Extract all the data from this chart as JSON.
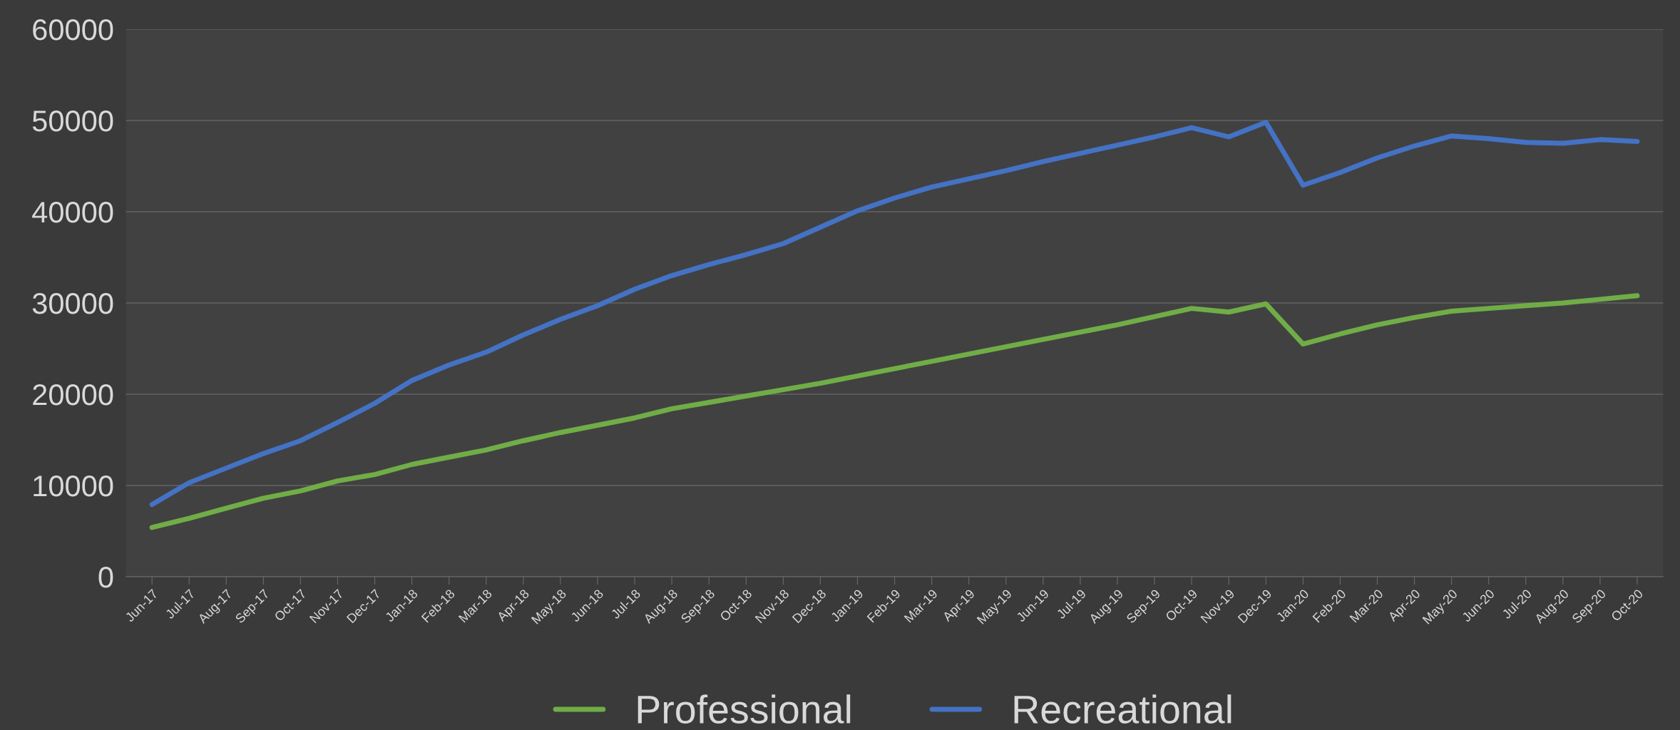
{
  "chart_data": {
    "type": "line",
    "categories": [
      "Jun-17",
      "Jul-17",
      "Aug-17",
      "Sep-17",
      "Oct-17",
      "Nov-17",
      "Dec-17",
      "Jan-18",
      "Feb-18",
      "Mar-18",
      "Apr-18",
      "May-18",
      "Jun-18",
      "Jul-18",
      "Aug-18",
      "Sep-18",
      "Oct-18",
      "Nov-18",
      "Dec-18",
      "Jan-19",
      "Feb-19",
      "Mar-19",
      "Apr-19",
      "May-19",
      "Jun-19",
      "Jul-19",
      "Aug-19",
      "Sep-19",
      "Oct-19",
      "Nov-19",
      "Dec-19",
      "Jan-20",
      "Feb-20",
      "Mar-20",
      "Apr-20",
      "May-20",
      "Jun-20",
      "Jul-20",
      "Aug-20",
      "Sep-20",
      "Oct-20"
    ],
    "series": [
      {
        "name": "Professional",
        "color": "#70ad47",
        "values": [
          5400,
          6400,
          7500,
          8600,
          9400,
          10500,
          11200,
          12300,
          13100,
          13900,
          14900,
          15800,
          16600,
          17400,
          18400,
          19100,
          19800,
          20500,
          21200,
          22000,
          22800,
          23600,
          24400,
          25200,
          26000,
          26800,
          27600,
          28500,
          29400,
          29000,
          29900,
          25500,
          26600,
          27600,
          28400,
          29100,
          29400,
          29700,
          30000,
          30400,
          30800
        ]
      },
      {
        "name": "Recreational",
        "color": "#4472c4",
        "values": [
          7900,
          10300,
          11900,
          13500,
          14900,
          16900,
          19000,
          21500,
          23200,
          24600,
          26500,
          28200,
          29700,
          31500,
          33000,
          34200,
          35300,
          36500,
          38300,
          40100,
          41500,
          42700,
          43600,
          44500,
          45500,
          46400,
          47300,
          48200,
          49200,
          48200,
          49800,
          42900,
          44300,
          45900,
          47200,
          48300,
          48000,
          47600,
          47500,
          47900,
          47700
        ]
      }
    ],
    "ylim": [
      0,
      60000
    ],
    "yticks": [
      0,
      10000,
      20000,
      30000,
      40000,
      50000,
      60000
    ],
    "grid": "y",
    "legend": "bottom",
    "marker": "none",
    "line_style": "solid"
  }
}
